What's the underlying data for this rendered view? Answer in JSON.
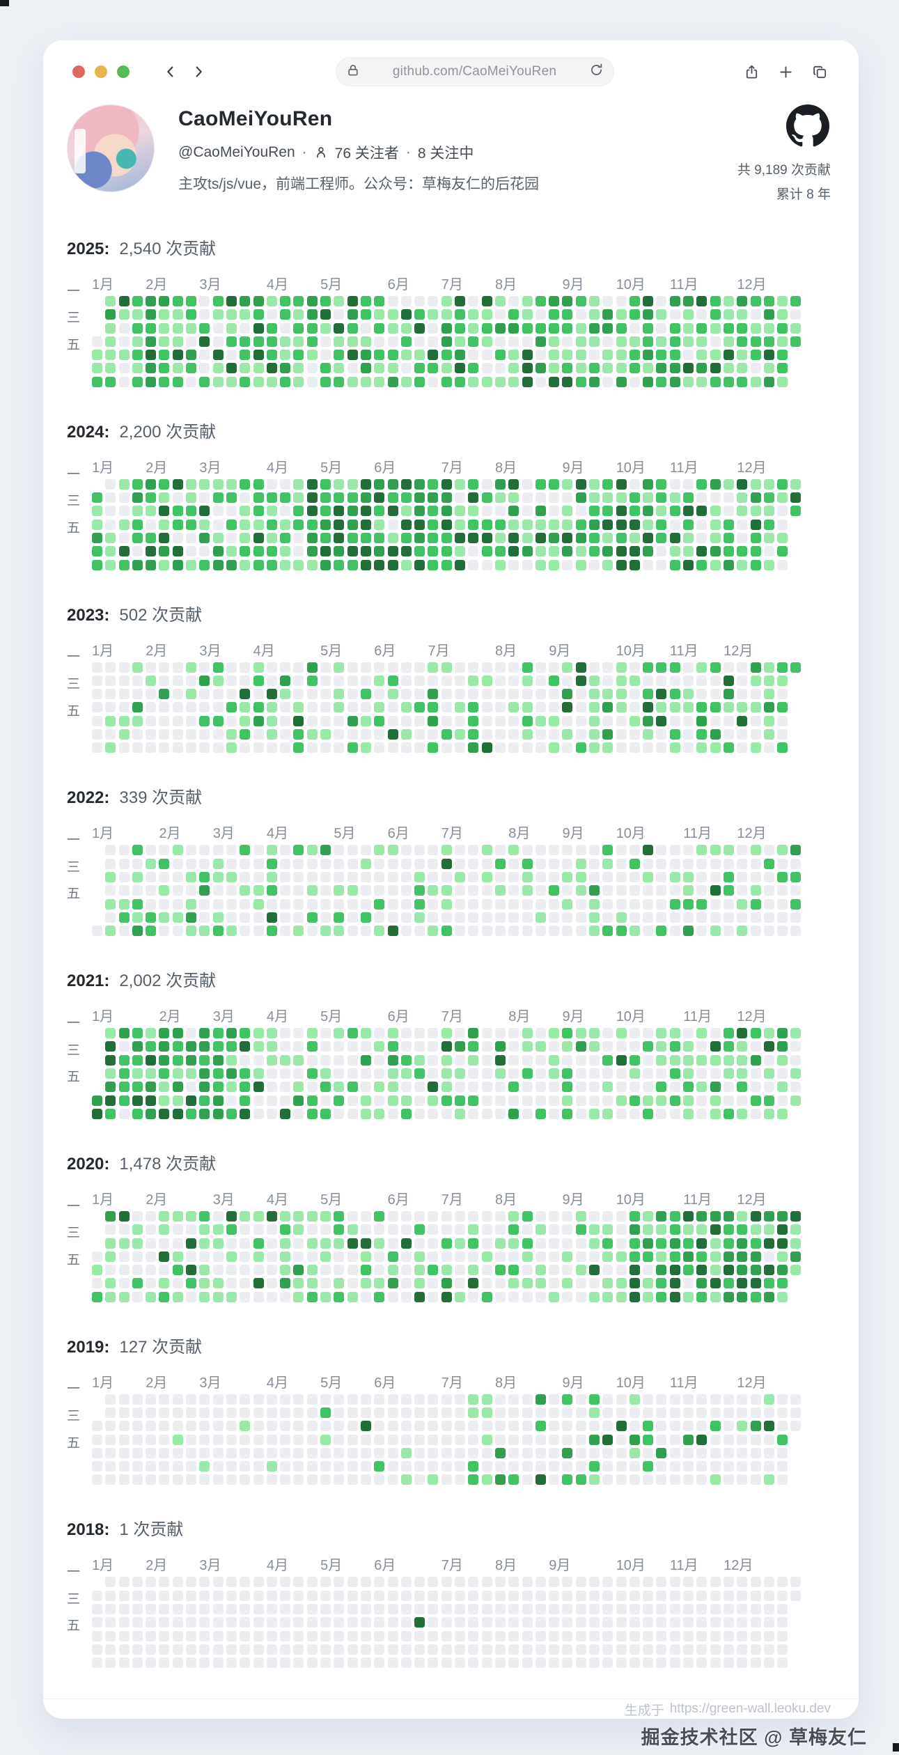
{
  "browser": {
    "url": "github.com/CaoMeiYouRen",
    "traffic_lights": {
      "close": "#e0685c",
      "minimize": "#e9b44c",
      "maximize": "#57bb54"
    }
  },
  "profile": {
    "name": "CaoMeiYouRen",
    "handle": "@CaoMeiYouRen",
    "dot": "·",
    "followers": "76 关注者",
    "following": "8 关注中",
    "bio": "主攻ts/js/vue，前端工程师。公众号：草梅友仁的后花园",
    "total": "共 9,189 次贡献",
    "span": "累计 8 年"
  },
  "calendar": {
    "month_suffix": "月",
    "weekday_labels": [
      {
        "row": 1,
        "label": "一"
      },
      {
        "row": 3,
        "label": "三"
      },
      {
        "row": 5,
        "label": "五"
      }
    ],
    "level_colors": [
      "#ebedf0",
      "#9be9a8",
      "#40c463",
      "#30a14e",
      "#216e39"
    ],
    "years": [
      {
        "year_label": "2025:",
        "year": 2025,
        "count": "2,540 次贡献",
        "seed": 20251,
        "base": {
          "p": 0.84,
          "w": [
            0.4,
            0.34,
            0.15,
            0.11
          ]
        },
        "bursts": []
      },
      {
        "year_label": "2024:",
        "year": 2024,
        "count": "2,200 次贡献",
        "seed": 20242,
        "base": {
          "p": 0.74,
          "w": [
            0.44,
            0.32,
            0.13,
            0.11
          ]
        },
        "bursts": [
          {
            "from": 16,
            "to": 26,
            "p": 0.96,
            "w": [
              0.15,
              0.3,
              0.28,
              0.27
            ]
          },
          {
            "from": 36,
            "to": 44,
            "p": 0.88,
            "w": [
              0.28,
              0.32,
              0.2,
              0.2
            ]
          }
        ]
      },
      {
        "year_label": "2023:",
        "year": 2023,
        "count": "502 次贡献",
        "seed": 20233,
        "base": {
          "p": 0.3,
          "w": [
            0.62,
            0.24,
            0.09,
            0.05
          ]
        },
        "bursts": [
          {
            "from": 35,
            "to": 52,
            "p": 0.62,
            "w": [
              0.44,
              0.3,
              0.16,
              0.1
            ]
          },
          {
            "from": 9,
            "to": 20,
            "p": 0.38,
            "w": [
              0.55,
              0.3,
              0.1,
              0.05
            ]
          }
        ]
      },
      {
        "year_label": "2022:",
        "year": 2022,
        "count": "339 次贡献",
        "seed": 20224,
        "base": {
          "p": 0.27,
          "w": [
            0.56,
            0.3,
            0.09,
            0.05
          ]
        },
        "bursts": [
          {
            "from": 0,
            "to": 9,
            "p": 0.4,
            "w": [
              0.5,
              0.3,
              0.13,
              0.07
            ]
          },
          {
            "from": 20,
            "to": 28,
            "p": 0.38,
            "w": [
              0.55,
              0.3,
              0.1,
              0.05
            ]
          },
          {
            "from": 44,
            "to": 52,
            "p": 0.34,
            "w": [
              0.5,
              0.28,
              0.12,
              0.1
            ]
          }
        ]
      },
      {
        "year_label": "2021:",
        "year": 2021,
        "count": "2,002 次贡献",
        "seed": 20215,
        "base": {
          "p": 0.55,
          "w": [
            0.58,
            0.28,
            0.09,
            0.05
          ]
        },
        "bursts": [
          {
            "from": 0,
            "to": 11,
            "p": 0.93,
            "w": [
              0.22,
              0.3,
              0.26,
              0.22
            ]
          },
          {
            "from": 29,
            "to": 40,
            "p": 0.35,
            "w": [
              0.6,
              0.28,
              0.08,
              0.04
            ]
          }
        ]
      },
      {
        "year_label": "2020:",
        "year": 2020,
        "count": "1,478 次贡献",
        "seed": 20206,
        "base": {
          "p": 0.52,
          "w": [
            0.56,
            0.3,
            0.09,
            0.05
          ]
        },
        "bursts": [
          {
            "from": 40,
            "to": 52,
            "p": 0.94,
            "w": [
              0.18,
              0.3,
              0.26,
              0.26
            ]
          },
          {
            "from": 18,
            "to": 30,
            "p": 0.45,
            "w": [
              0.6,
              0.28,
              0.08,
              0.04
            ]
          }
        ]
      },
      {
        "year_label": "2019:",
        "year": 2019,
        "count": "127 次贡献",
        "seed": 20197,
        "base": {
          "p": 0.05,
          "w": [
            0.6,
            0.3,
            0.06,
            0.04
          ]
        },
        "bursts": [
          {
            "from": 28,
            "to": 52,
            "p": 0.24,
            "w": [
              0.48,
              0.3,
              0.1,
              0.12
            ]
          },
          {
            "from": 8,
            "to": 12,
            "p": 0.1,
            "w": [
              0.6,
              0.3,
              0.05,
              0.05
            ]
          }
        ]
      },
      {
        "year_label": "2018:",
        "year": 2018,
        "count": "1 次贡献",
        "seed": 20188,
        "base": {
          "p": 0,
          "w": [
            1,
            0,
            0,
            0
          ]
        },
        "bursts": [],
        "cells": [
          {
            "w": 24,
            "d": 3,
            "l": 4
          }
        ]
      }
    ]
  },
  "chart_data": {
    "type": "heatmap",
    "title": "GitHub contribution calendars by year",
    "overall_total": 9189,
    "span_years": 8,
    "years": [
      {
        "year": 2025,
        "total": 2540
      },
      {
        "year": 2024,
        "total": 2200
      },
      {
        "year": 2023,
        "total": 502
      },
      {
        "year": 2022,
        "total": 339
      },
      {
        "year": 2021,
        "total": 2002
      },
      {
        "year": 2020,
        "total": 1478
      },
      {
        "year": 2019,
        "total": 127
      },
      {
        "year": 2018,
        "total": 1
      }
    ],
    "palette": [
      "#ebedf0",
      "#9be9a8",
      "#40c463",
      "#30a14e",
      "#216e39"
    ]
  },
  "footer": {
    "label": "生成于",
    "url": "https://green-wall.leoku.dev"
  },
  "watermark": "掘金技术社区 @ 草梅友仁"
}
